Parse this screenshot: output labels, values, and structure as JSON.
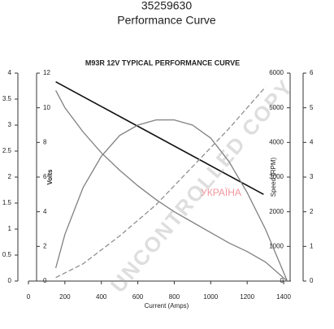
{
  "header": {
    "part_number": "35259630",
    "subtitle": "Performance Curve"
  },
  "chart_data": {
    "type": "line",
    "title": "M93R 12V TYPICAL PERFORMANCE CURVE",
    "xlabel": "Current (Amps)",
    "xlim": [
      0,
      1440
    ],
    "xticks": [
      0,
      200,
      400,
      600,
      800,
      1000,
      1200,
      1400
    ],
    "ylim": [
      0,
      4
    ],
    "yticks": [
      0,
      0.5,
      1,
      1.5,
      2,
      2.5,
      3,
      3.5,
      4
    ],
    "y2label": "Volts",
    "y2lim": [
      0,
      12
    ],
    "y2ticks": [
      0,
      2,
      4,
      6,
      8,
      10,
      12
    ],
    "y3label": "Speed (RPM)",
    "y3lim": [
      0,
      6000
    ],
    "y3ticks": [
      0,
      1000,
      2000,
      3000,
      4000,
      5000,
      6000
    ],
    "y4lim": [
      0,
      6
    ],
    "y4ticks": [
      0,
      1,
      2,
      3,
      4,
      5,
      6
    ],
    "watermark": "UNCONTROLLED COPY",
    "logo_text": "УКРАЇНА",
    "series": [
      {
        "axis": "y2",
        "color": "#111111",
        "dashed": false,
        "x": [
          150,
          1290
        ],
        "values": [
          11.5,
          5.0
        ]
      },
      {
        "axis": "y3",
        "color": "#808080",
        "dashed": false,
        "x": [
          150,
          200,
          300,
          400,
          500,
          600,
          700,
          800,
          900,
          1000,
          1100,
          1200,
          1300,
          1420
        ],
        "values": [
          5500,
          5000,
          4300,
          3700,
          3200,
          2750,
          2350,
          2000,
          1700,
          1400,
          1100,
          850,
          550,
          0
        ]
      },
      {
        "axis": "y",
        "color": "#808080",
        "dashed": false,
        "x": [
          150,
          200,
          300,
          400,
          500,
          600,
          700,
          800,
          900,
          1000,
          1100,
          1200,
          1300,
          1420
        ],
        "values": [
          0.25,
          0.9,
          1.8,
          2.4,
          2.8,
          3.0,
          3.1,
          3.1,
          3.0,
          2.75,
          2.3,
          1.7,
          1.0,
          0
        ]
      },
      {
        "axis": "y4",
        "color": "#909090",
        "dashed": true,
        "x": [
          150,
          300,
          500,
          700,
          900,
          1100,
          1300
        ],
        "values": [
          0.1,
          0.5,
          1.3,
          2.2,
          3.3,
          4.4,
          5.6
        ]
      }
    ]
  }
}
